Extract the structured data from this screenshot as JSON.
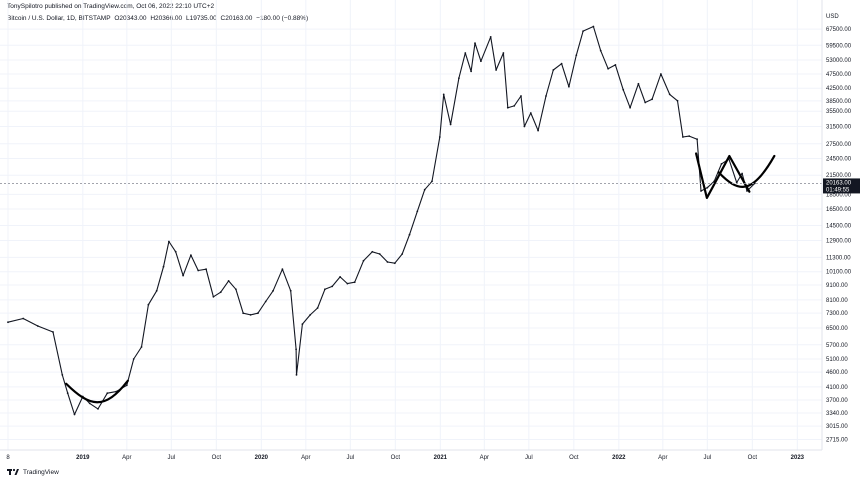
{
  "header": {
    "publisher_line": "TonySpilotro published on TradingView.com, Oct 06, 2022 22:10 UTC+2",
    "symbol": "Bitcoin / U.S. Dollar, 1D, BITSTAMP",
    "open": "O20343.00",
    "high": "H20366.00",
    "low": "L19735.00",
    "close": "C20163.00",
    "change": "−180.00 (−0.88%)"
  },
  "currency_label": "USD",
  "current_price_label": "20163.00",
  "countdown_label": "01:49:55",
  "price_axis_labels": [
    "67500.00",
    "59500.00",
    "53000.00",
    "47500.00",
    "42500.00",
    "38500.00",
    "35500.00",
    "31500.00",
    "27500.00",
    "24500.00",
    "21500.00",
    "18500.00",
    "16500.00",
    "14500.00",
    "12900.00",
    "11300.00",
    "10100.00",
    "9100.00",
    "8100.00",
    "7300.00",
    "6500.00",
    "5700.00",
    "5100.00",
    "4600.00",
    "4100.00",
    "3700.00",
    "3340.00",
    "3015.00",
    "2715.00"
  ],
  "time_axis_labels": [
    "8",
    "2019",
    "Apr",
    "Jul",
    "Oct",
    "2020",
    "Apr",
    "Jul",
    "Oct",
    "2021",
    "Apr",
    "Jul",
    "Oct",
    "2022",
    "Apr",
    "Jul",
    "Oct",
    "2023"
  ],
  "footer": {
    "brand": "TradingView",
    "logo_icon": "tradingview-logo-icon"
  },
  "colors": {
    "candles": "#131722",
    "grid": "#f0f3fa",
    "price_line": "#9598a1",
    "price_label_bg": "#131722",
    "annotation": "#000000"
  },
  "chart_data": {
    "type": "line",
    "scale": "log",
    "title": "Bitcoin / U.S. Dollar, 1D, BITSTAMP",
    "xlabel": "",
    "ylabel": "USD",
    "ylim": [
      2500,
      76000
    ],
    "xlim": [
      "2018-08-01",
      "2023-01-31"
    ],
    "grid": true,
    "series": [
      {
        "name": "BTC/USD close",
        "x": [
          "2018-08-01",
          "2018-09-01",
          "2018-10-01",
          "2018-11-01",
          "2018-11-20",
          "2018-12-01",
          "2018-12-15",
          "2019-01-01",
          "2019-01-15",
          "2019-02-01",
          "2019-02-20",
          "2019-03-10",
          "2019-04-01",
          "2019-04-15",
          "2019-05-01",
          "2019-05-15",
          "2019-06-01",
          "2019-06-15",
          "2019-06-26",
          "2019-07-10",
          "2019-07-25",
          "2019-08-10",
          "2019-08-25",
          "2019-09-10",
          "2019-09-25",
          "2019-10-10",
          "2019-10-26",
          "2019-11-10",
          "2019-11-25",
          "2019-12-10",
          "2019-12-25",
          "2020-01-10",
          "2020-01-25",
          "2020-02-13",
          "2020-03-01",
          "2020-03-12",
          "2020-03-13",
          "2020-03-25",
          "2020-04-10",
          "2020-04-25",
          "2020-05-10",
          "2020-05-25",
          "2020-06-10",
          "2020-06-25",
          "2020-07-10",
          "2020-07-28",
          "2020-08-15",
          "2020-08-30",
          "2020-09-15",
          "2020-09-30",
          "2020-10-15",
          "2020-10-30",
          "2020-11-15",
          "2020-11-30",
          "2020-12-15",
          "2020-12-31",
          "2021-01-08",
          "2021-01-22",
          "2021-02-08",
          "2021-02-21",
          "2021-03-05",
          "2021-03-13",
          "2021-03-25",
          "2021-04-14",
          "2021-04-25",
          "2021-05-10",
          "2021-05-19",
          "2021-06-01",
          "2021-06-15",
          "2021-06-22",
          "2021-07-05",
          "2021-07-20",
          "2021-08-05",
          "2021-08-20",
          "2021-09-06",
          "2021-09-21",
          "2021-10-06",
          "2021-10-20",
          "2021-11-10",
          "2021-11-25",
          "2021-12-10",
          "2021-12-25",
          "2022-01-10",
          "2022-01-24",
          "2022-02-10",
          "2022-02-24",
          "2022-03-10",
          "2022-03-28",
          "2022-04-15",
          "2022-05-01",
          "2022-05-12",
          "2022-05-25",
          "2022-06-10",
          "2022-06-18",
          "2022-07-01",
          "2022-07-15",
          "2022-07-30",
          "2022-08-14",
          "2022-08-30",
          "2022-09-10",
          "2022-09-20",
          "2022-10-06"
        ],
        "values": [
          6800,
          7000,
          6600,
          6300,
          4500,
          3900,
          3300,
          3800,
          3600,
          3450,
          3900,
          3950,
          4150,
          5100,
          5600,
          7800,
          8700,
          10500,
          12800,
          11800,
          9800,
          11500,
          10200,
          10300,
          8300,
          8600,
          9400,
          8800,
          7300,
          7200,
          7300,
          8000,
          8700,
          10300,
          8700,
          5500,
          4500,
          6700,
          7200,
          7600,
          8800,
          9000,
          9700,
          9200,
          9300,
          11000,
          11800,
          11600,
          10900,
          10800,
          11600,
          13500,
          16200,
          19200,
          20500,
          29000,
          40500,
          32000,
          46000,
          56000,
          48500,
          60500,
          52500,
          63500,
          49000,
          56000,
          36500,
          37000,
          40000,
          31500,
          35000,
          30500,
          40000,
          49000,
          51500,
          43000,
          55000,
          66500,
          68900,
          57000,
          49500,
          51000,
          42000,
          36500,
          44000,
          38000,
          39000,
          47500,
          40500,
          38500,
          29000,
          29200,
          28500,
          19000,
          19500,
          20500,
          23500,
          24400,
          20300,
          21800,
          19000,
          20163
        ]
      }
    ],
    "annotations": [
      {
        "type": "rounded-bottom-arc",
        "x": [
          "2018-11-28",
          "2019-01-15",
          "2019-02-15",
          "2019-04-03"
        ],
        "y": [
          4200,
          3500,
          3400,
          4300
        ]
      },
      {
        "type": "zigzag-path",
        "x": [
          "2022-06-08",
          "2022-06-30",
          "2022-07-12",
          "2022-08-15",
          "2022-09-25"
        ],
        "y": [
          25500,
          18000,
          19600,
          25000,
          18900
        ]
      },
      {
        "type": "rounded-bottom-arc",
        "x": [
          "2022-07-24",
          "2022-09-01",
          "2022-09-30",
          "2022-11-15"
        ],
        "y": [
          22000,
          18800,
          18300,
          25000
        ]
      }
    ]
  }
}
